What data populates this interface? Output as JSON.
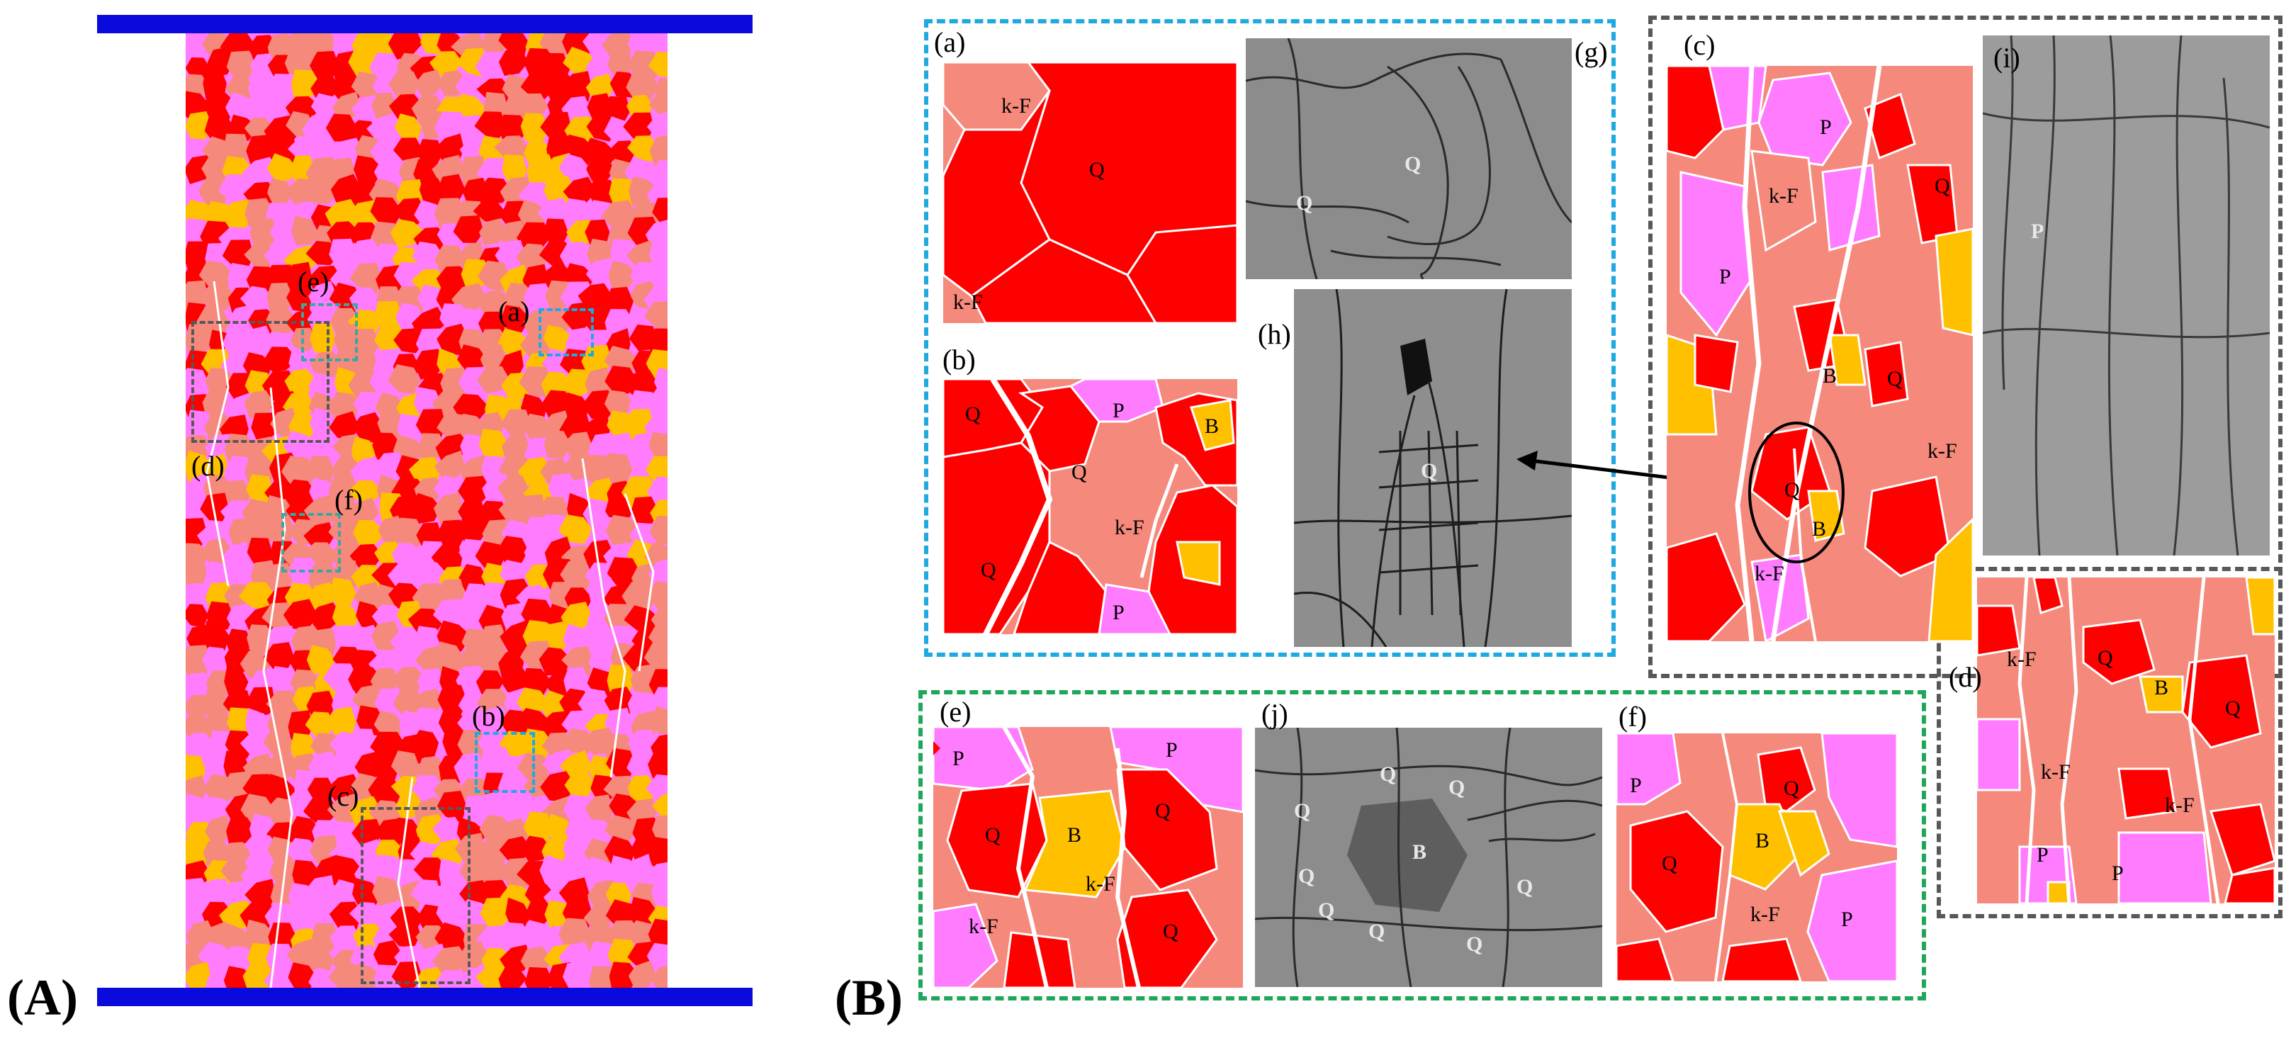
{
  "colors": {
    "quartz": "#ff0000",
    "k_feldspar": "#f5897c",
    "plagioclase": "#ff7cff",
    "biotite": "#ffc000",
    "plate": "#0a0adc",
    "blue_frame": "#1ea9e1",
    "green_frame": "#1ea75a",
    "gray_frame": "#585858",
    "teal_square": "#3aa7a0"
  },
  "figure": {
    "panel_A_label": "(A)",
    "panel_B_label": "(B)"
  },
  "model_labels": {
    "a": "(a)",
    "b": "(b)",
    "c": "(c)",
    "d": "(d)",
    "e": "(e)",
    "f": "(f)"
  },
  "subpanels": {
    "a": {
      "label": "(a)",
      "marks": [
        "k-F",
        "Q",
        "k-F"
      ]
    },
    "b": {
      "label": "(b)",
      "marks": [
        "Q",
        "P",
        "B",
        "Q",
        "k-F",
        "Q",
        "P"
      ]
    },
    "c": {
      "label": "(c)",
      "marks": [
        "P",
        "k-F",
        "Q",
        "P",
        "B",
        "Q",
        "k-F",
        "Q",
        "B",
        "k-F"
      ]
    },
    "d": {
      "label": "(d)",
      "marks": [
        "k-F",
        "Q",
        "B",
        "Q",
        "k-F",
        "k-F",
        "P",
        "P"
      ]
    },
    "e": {
      "label": "(e)",
      "marks": [
        "P",
        "P",
        "Q",
        "B",
        "Q",
        "k-F",
        "k-F",
        "Q"
      ]
    },
    "f": {
      "label": "(f)",
      "marks": [
        "P",
        "Q",
        "Q",
        "B",
        "k-F",
        "P"
      ]
    },
    "g": {
      "label": "(g)",
      "marks": [
        "Q",
        "Q"
      ]
    },
    "h": {
      "label": "(h)",
      "marks": [
        "Q"
      ]
    },
    "i": {
      "label": "(i)",
      "marks": [
        "P"
      ]
    },
    "j": {
      "label": "(j)",
      "marks": [
        "Q",
        "Q",
        "Q",
        "B",
        "Q",
        "Q",
        "Q",
        "Q",
        "Q"
      ]
    }
  }
}
